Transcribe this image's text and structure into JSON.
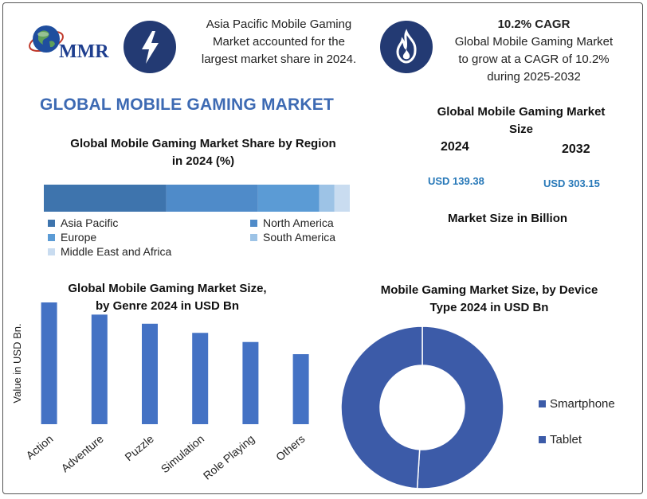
{
  "logo": {
    "text": "MMR"
  },
  "header": {
    "share_text": [
      "Asia Pacific Mobile Gaming",
      "Market accounted for the",
      "largest market share in 2024."
    ],
    "cagr_title": "10.2% CAGR",
    "cagr_text": [
      "Global Mobile Gaming Market",
      "to grow at a CAGR of 10.2%",
      "during 2025-2032"
    ]
  },
  "main_title": "GLOBAL MOBILE GAMING MARKET",
  "market_size": {
    "title_line1": "Global Mobile Gaming Market",
    "title_line2": "Size",
    "year_a": "2024",
    "year_b": "2032",
    "value_a": "USD 139.38",
    "value_b": "USD 303.15",
    "unit_label": "Market Size in Billion"
  },
  "colors": {
    "asia_pacific": "#3e74ad",
    "north_america": "#4f8bc9",
    "europe": "#5b9bd5",
    "south_america": "#9dc3e6",
    "mea": "#c9dcf0",
    "genre_bar": "#4472c4",
    "smartphone": "#3c5ba8",
    "tablet": "#3c5ba8"
  },
  "chart_data": [
    {
      "type": "bar",
      "orientation": "horizontal-stacked",
      "title": "Global Mobile Gaming Market Share by Region in 2024 (%)",
      "title_line1": "Global Mobile Gaming Market Share by Region",
      "title_line2": "in 2024 (%)",
      "series": [
        {
          "name": "Asia Pacific",
          "values": [
            40
          ]
        },
        {
          "name": "North America",
          "values": [
            30
          ]
        },
        {
          "name": "Europe",
          "values": [
            20
          ]
        },
        {
          "name": "South America",
          "values": [
            5
          ]
        },
        {
          "name": "Middle East and Africa",
          "values": [
            5
          ]
        }
      ],
      "legend": "bottom"
    },
    {
      "type": "bar",
      "title": "Global Mobile Gaming Market Size, by Genre 2024 in USD Bn",
      "title_line1": "Global Mobile Gaming Market Size,",
      "title_line2": "by Genre 2024 in USD Bn",
      "categories": [
        "Action",
        "Adventure",
        "Puzzle",
        "Simulation",
        "Role Playing",
        "Others"
      ],
      "values": [
        40,
        36,
        33,
        30,
        27,
        23
      ],
      "xlabel": "",
      "ylabel": "Value in USD Bn.",
      "ylim": [
        0,
        40
      ]
    },
    {
      "type": "pie",
      "style": "donut",
      "title": "Mobile Gaming Market Size, by Device Type 2024 in USD Bn",
      "title_line1": "Mobile Gaming Market Size, by Device",
      "title_line2": "Type 2024 in USD Bn",
      "categories": [
        "Smartphone",
        "Tablet"
      ],
      "values": [
        51,
        49
      ],
      "legend": "right"
    }
  ]
}
